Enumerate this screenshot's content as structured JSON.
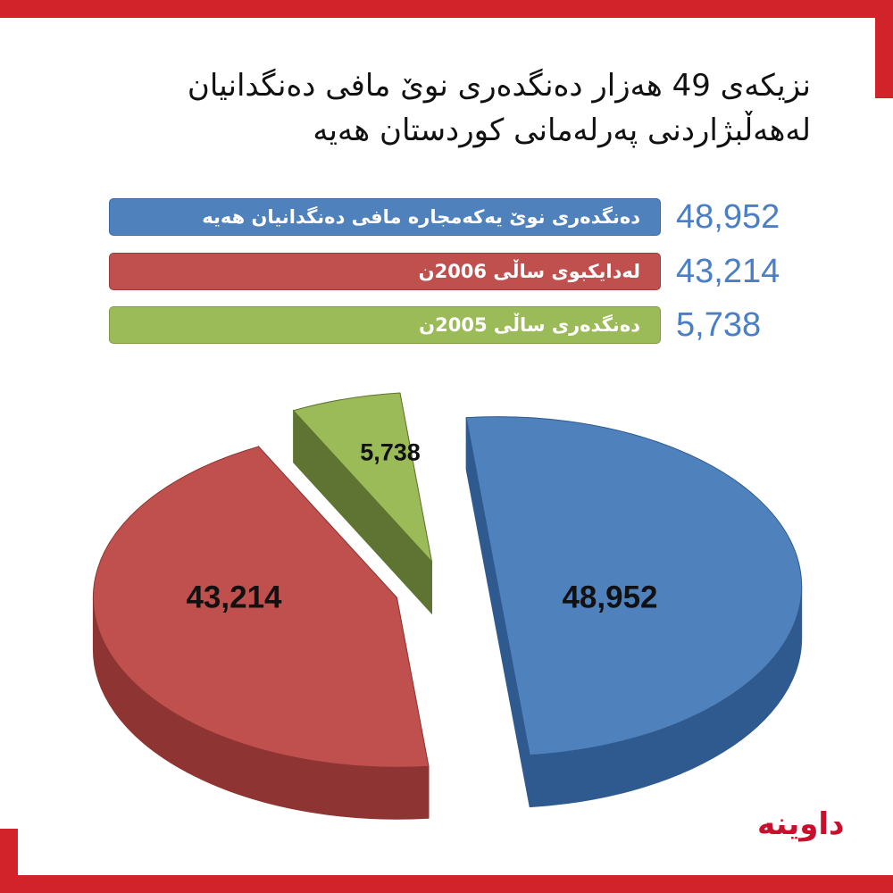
{
  "header": {
    "title_line1": "نزیکەی 49 هەزار دەنگدەری نوێ مافی دەنگدانیان",
    "title_line2": "لەهەڵبژاردنی پەرلەمانی کوردستان هەیە"
  },
  "legend": [
    {
      "label": "دەنگدەری نوێ یەکەمجارە مافی دەنگدانیان هەیە",
      "value_text": "48,952",
      "color": "#4f81bd"
    },
    {
      "label": "لەدایکبوی ساڵی 2006ن",
      "value_text": "43,214",
      "color": "#c0504d"
    },
    {
      "label": "دەنگدەری ساڵی 2005ن",
      "value_text": "5,738",
      "color": "#9bbb59"
    }
  ],
  "colors": {
    "frame": "#d2232a",
    "legend_value_text": "#4a7ec6",
    "logo": "#c8102e"
  },
  "chart_data": {
    "type": "pie",
    "title": "",
    "slices": [
      {
        "label": "دەنگدەری نوێ یەکەمجارە مافی دەنگدانیان هەیە",
        "value": 48952,
        "value_text": "48,952",
        "color": "#4f81bd",
        "side_color": "#2f5a8f"
      },
      {
        "label": "لەدایکبوی ساڵی 2006ن",
        "value": 43214,
        "value_text": "43,214",
        "color": "#c0504d",
        "side_color": "#8e3533"
      },
      {
        "label": "دەنگدەری ساڵی 2005ن",
        "value": 5738,
        "value_text": "5,738",
        "color": "#9bbb59",
        "side_color": "#5f7432"
      }
    ],
    "style": "3d-exploded"
  },
  "logo": {
    "text": "داوینە"
  }
}
